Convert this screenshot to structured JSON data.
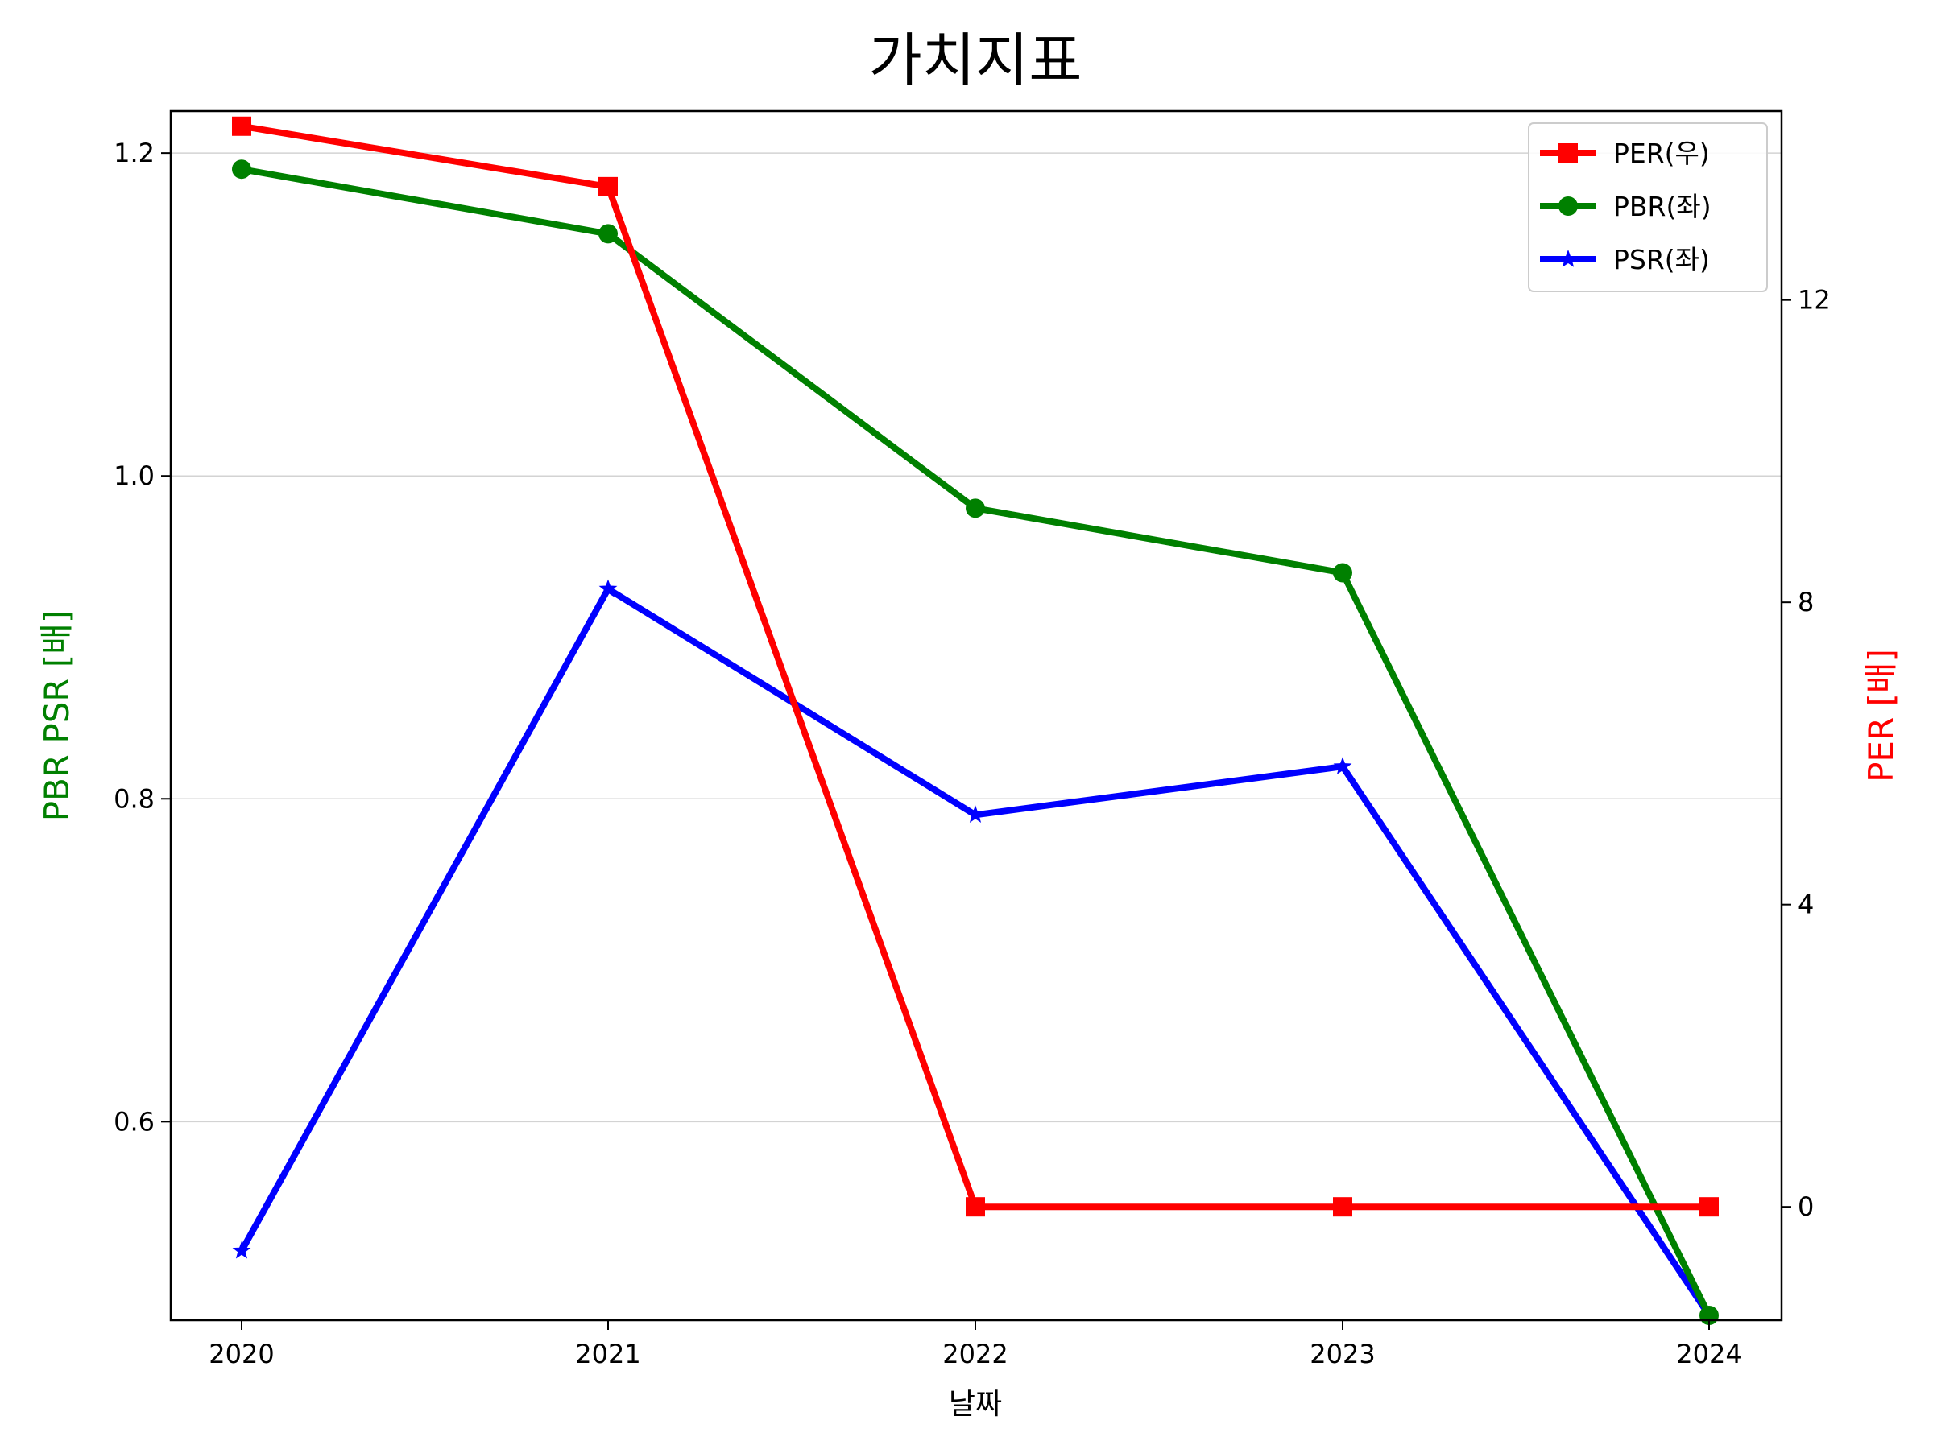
{
  "chart_data": {
    "type": "line",
    "title": "가치지표",
    "xlabel": "날짜",
    "ylabel_left": "PBR PSR [배]",
    "ylabel_right": "PER [배]",
    "categories": [
      "2020",
      "2021",
      "2022",
      "2023",
      "2024"
    ],
    "ylim_left": [
      0.477,
      1.226
    ],
    "yticks_left": [
      0.6,
      0.8,
      1.0,
      1.2
    ],
    "ytick_labels_left": [
      "0.6",
      "0.8",
      "1.0",
      "1.2"
    ],
    "ylim_right": [
      -1.5,
      14.5
    ],
    "yticks_right": [
      0,
      4,
      8,
      12
    ],
    "ytick_labels_right": [
      "0",
      "4",
      "8",
      "12"
    ],
    "grid": "horizontal",
    "legend_position": "top-right",
    "series": [
      {
        "name": "PER(우)",
        "axis": "right",
        "color": "#ff0000",
        "marker": "square",
        "values": [
          14.3,
          13.5,
          0,
          0,
          0
        ]
      },
      {
        "name": "PBR(좌)",
        "axis": "left",
        "color": "#008000",
        "marker": "circle",
        "values": [
          1.19,
          1.15,
          0.98,
          0.94,
          0.48
        ]
      },
      {
        "name": "PSR(좌)",
        "axis": "left",
        "color": "#0000ff",
        "marker": "star",
        "values": [
          0.52,
          0.93,
          0.79,
          0.82,
          0.48
        ]
      }
    ]
  }
}
